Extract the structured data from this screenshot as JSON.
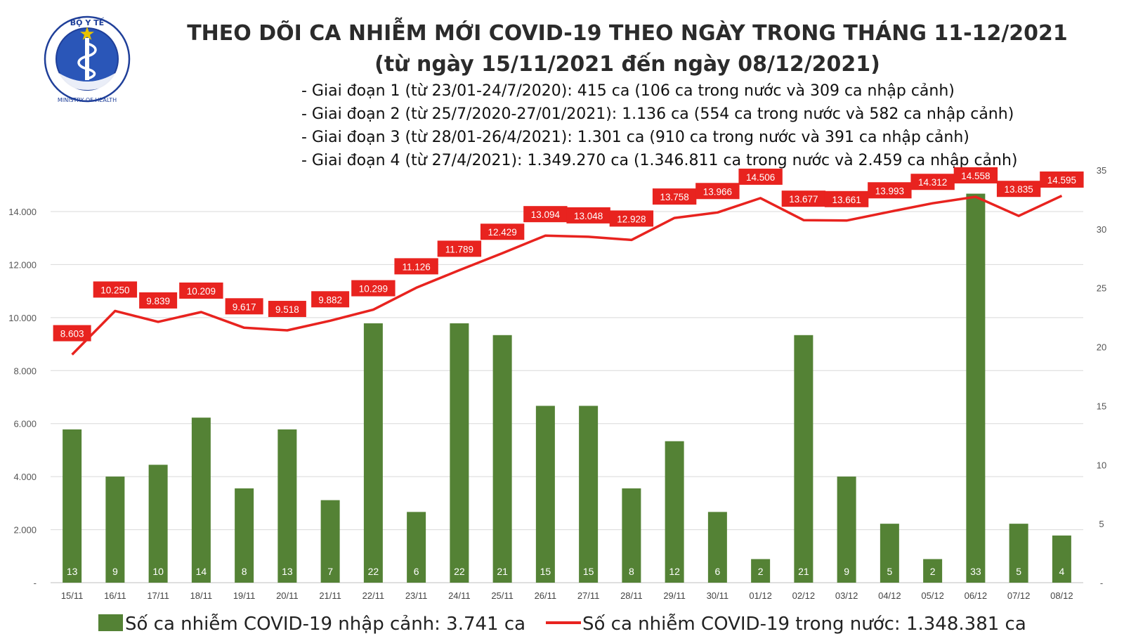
{
  "logo": {
    "top_text": "BỘ Y TẾ",
    "bottom_text": "MINISTRY OF HEALTH",
    "colors": {
      "ring": "#1f3f99",
      "star": "#e8c300",
      "flag": "#d8262a"
    }
  },
  "chart_data": {
    "type": "bar+line",
    "title": "THEO DÕI CA NHIỄM MỚI COVID-19 THEO NGÀY TRONG THÁNG 11-12/2021",
    "subtitle": "(từ ngày 15/11/2021 đến ngày 08/12/2021)",
    "notes": [
      "- Giai đoạn 1 (từ 23/01-24/7/2020): 415 ca (106 ca trong nước và 309 ca nhập cảnh)",
      "- Giai đoạn 2 (từ 25/7/2020-27/01/2021): 1.136 ca (554 ca trong nước và 582 ca nhập cảnh)",
      "- Giai đoạn 3 (từ 28/01-26/4/2021): 1.301 ca (910 ca trong nước và 391 ca nhập cảnh)",
      "- Giai đoạn 4 (từ 27/4/2021): 1.349.270 ca (1.346.811 ca trong nước và 2.459 ca nhập cảnh)"
    ],
    "categories": [
      "15/11",
      "16/11",
      "17/11",
      "18/11",
      "19/11",
      "20/11",
      "21/11",
      "22/11",
      "23/11",
      "24/11",
      "25/11",
      "26/11",
      "27/11",
      "28/11",
      "29/11",
      "30/11",
      "01/12",
      "02/12",
      "03/12",
      "04/12",
      "05/12",
      "06/12",
      "07/12",
      "08/12"
    ],
    "series": [
      {
        "name": "Số ca nhiễm COVID-19 nhập cảnh: 3.741 ca",
        "chart": "bar",
        "axis": "right",
        "color": "#548235",
        "values": [
          13,
          9,
          10,
          14,
          8,
          13,
          7,
          22,
          6,
          22,
          21,
          15,
          15,
          8,
          12,
          6,
          2,
          21,
          9,
          5,
          2,
          33,
          5,
          4
        ],
        "labels": [
          "13",
          "9",
          "10",
          "14",
          "8",
          "13",
          "7",
          "22",
          "6",
          "22",
          "21",
          "15",
          "15",
          "8",
          "12",
          "6",
          "2",
          "21",
          "9",
          "5",
          "2",
          "33",
          "5",
          "4"
        ]
      },
      {
        "name": "Số ca nhiễm COVID-19 trong nước: 1.348.381 ca",
        "chart": "line",
        "axis": "left",
        "color": "#e8231f",
        "values": [
          8603,
          10250,
          9839,
          10209,
          9617,
          9518,
          9882,
          10299,
          11126,
          11789,
          12429,
          13094,
          13048,
          12928,
          13758,
          13966,
          14506,
          13677,
          13661,
          13993,
          14312,
          14558,
          13835,
          14595
        ],
        "labels": [
          "8.603",
          "10.250",
          "9.839",
          "10.209",
          "9.617",
          "9.518",
          "9.882",
          "10.299",
          "11.126",
          "11.789",
          "12.429",
          "13.094",
          "13.048",
          "12.928",
          "13.758",
          "13.966",
          "14.506",
          "13.677",
          "13.661",
          "13.993",
          "14.312",
          "14.558",
          "13.835",
          "14.595"
        ]
      }
    ],
    "y_left": {
      "range": [
        0,
        14000
      ],
      "ticks": [
        0,
        2000,
        4000,
        6000,
        8000,
        10000,
        12000,
        14000
      ],
      "tick_labels": [
        "-",
        "2.000",
        "4.000",
        "6.000",
        "8.000",
        "10.000",
        "12.000",
        "14.000"
      ]
    },
    "y_right": {
      "range": [
        0,
        35
      ],
      "ticks": [
        0,
        5,
        10,
        15,
        20,
        25,
        30,
        35
      ],
      "tick_labels": [
        "-",
        "5",
        "10",
        "15",
        "20",
        "25",
        "30",
        "35"
      ]
    },
    "grid": true,
    "legend": "bottom"
  }
}
